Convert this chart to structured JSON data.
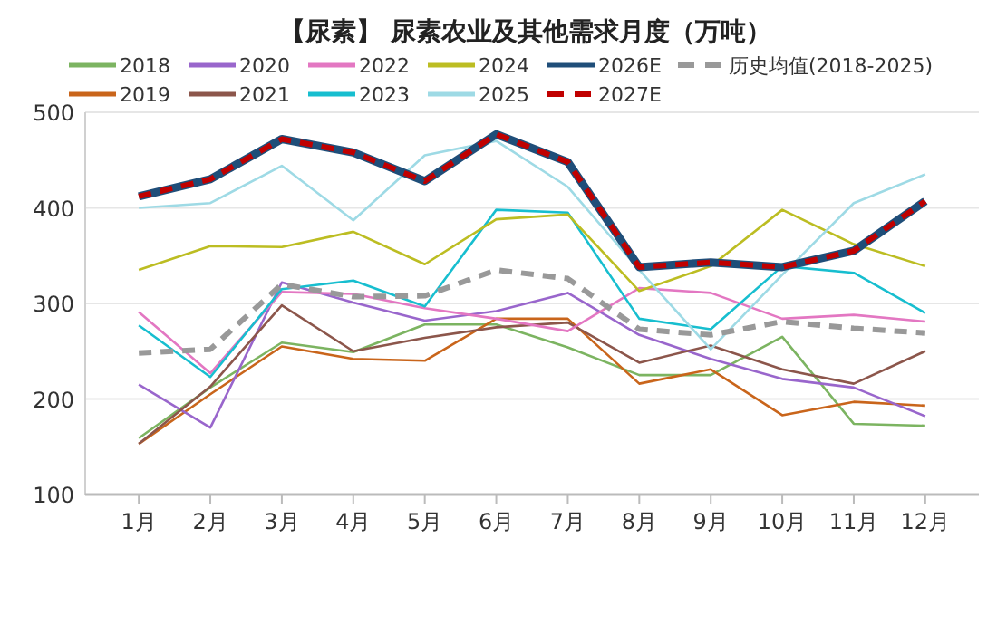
{
  "chart_data": {
    "type": "line",
    "title": "【尿素】 尿素农业及其他需求月度（万吨）",
    "categories": [
      "1月",
      "2月",
      "3月",
      "4月",
      "5月",
      "6月",
      "7月",
      "8月",
      "9月",
      "10月",
      "11月",
      "12月"
    ],
    "series": [
      {
        "name": "2018",
        "color": "#7cb461",
        "values": [
          159,
          212,
          259,
          249,
          278,
          278,
          254,
          225,
          225,
          265,
          174,
          172
        ]
      },
      {
        "name": "2019",
        "color": "#c9651b",
        "values": [
          153,
          205,
          255,
          242,
          240,
          284,
          284,
          216,
          231,
          183,
          197,
          193
        ]
      },
      {
        "name": "2020",
        "color": "#9966cc",
        "values": [
          215,
          170,
          322,
          301,
          282,
          292,
          311,
          267,
          242,
          221,
          212,
          182
        ]
      },
      {
        "name": "2021",
        "color": "#8c564b",
        "values": [
          153,
          213,
          298,
          250,
          264,
          275,
          280,
          238,
          256,
          231,
          216,
          250
        ]
      },
      {
        "name": "2022",
        "color": "#e377c2",
        "values": [
          291,
          227,
          312,
          310,
          295,
          284,
          271,
          316,
          311,
          284,
          288,
          281
        ]
      },
      {
        "name": "2023",
        "color": "#17becf",
        "values": [
          277,
          223,
          315,
          324,
          297,
          398,
          395,
          284,
          273,
          339,
          332,
          290
        ]
      },
      {
        "name": "2024",
        "color": "#bcbd22",
        "values": [
          335,
          360,
          359,
          375,
          341,
          388,
          393,
          313,
          339,
          398,
          362,
          339
        ]
      },
      {
        "name": "2025",
        "color": "#9edae5",
        "values": [
          400,
          405,
          444,
          387,
          455,
          470,
          422,
          335,
          252,
          330,
          405,
          435
        ]
      },
      {
        "name": "2026E",
        "color": "#1f4e79",
        "values": [
          412,
          430,
          472,
          458,
          428,
          477,
          448,
          338,
          343,
          338,
          355,
          407
        ]
      },
      {
        "name": "2027E",
        "color": "#c00000",
        "line_style": "dashed",
        "values": [
          412,
          430,
          472,
          458,
          428,
          477,
          448,
          338,
          343,
          338,
          355,
          407
        ]
      },
      {
        "name": "历史均值(2018-2025)",
        "color": "#999999",
        "line_style": "dashed",
        "values": [
          248,
          252,
          320,
          307,
          308,
          335,
          326,
          273,
          267,
          281,
          274,
          269
        ]
      }
    ],
    "ylim": [
      100,
      500
    ],
    "yticks": [
      100,
      200,
      300,
      400,
      500
    ],
    "grid": "y",
    "legend": "top",
    "line_style": "solid"
  }
}
